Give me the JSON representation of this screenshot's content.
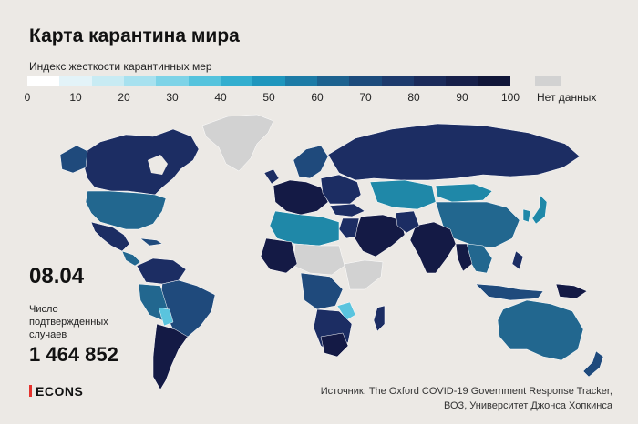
{
  "title": "Карта карантина мира",
  "legend": {
    "caption": "Индекс жесткости карантинных мер",
    "ticks": [
      "0",
      "10",
      "20",
      "30",
      "40",
      "50",
      "60",
      "70",
      "80",
      "90",
      "100"
    ],
    "colors": [
      "#ffffff",
      "#e3f3f8",
      "#c8ebf3",
      "#a7e1ef",
      "#7dd3e7",
      "#55c3dd",
      "#33aecf",
      "#1f96bd",
      "#1d7ba6",
      "#1d628f",
      "#1c4b7c",
      "#1d3a6c",
      "#1b2b5a",
      "#17204a",
      "#101538"
    ],
    "nodata_color": "#d2d2d2",
    "nodata_label": "Нет данных"
  },
  "date": "08.04",
  "cases_label": "Число подтвержденных случаев",
  "cases_value": "1 464 852",
  "logo": "ECONS",
  "source_line1": "Источник: The Oxford COVID-19 Government Response Tracker,",
  "source_line2": "ВОЗ, Университет Джонса Хопкинса",
  "map": {
    "type": "choropleth world map",
    "colors": {
      "max": "#141a45",
      "very_high": "#1c2d63",
      "high": "#1f4a7c",
      "medium": "#22678f",
      "mid_low": "#1f88a8",
      "low": "#2ba7c4",
      "lowest": "#5ac4de",
      "nodata": "#d2d2d2"
    }
  }
}
